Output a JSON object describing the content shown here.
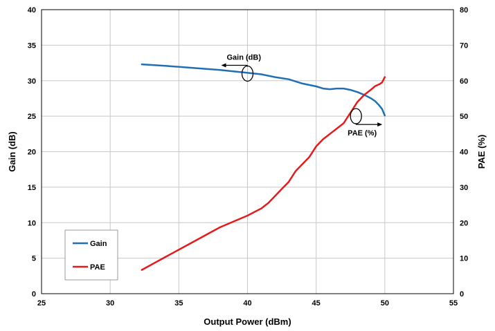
{
  "chart_data": {
    "type": "line",
    "xlabel": "Output Power (dBm)",
    "ylabel": "Gain (dB)",
    "y2label": "PAE (%)",
    "xlim": [
      25,
      55
    ],
    "ylim": [
      0,
      40
    ],
    "y2lim": [
      0,
      80
    ],
    "x_ticks": [
      25,
      30,
      35,
      40,
      45,
      50,
      55
    ],
    "y_ticks": [
      0,
      5,
      10,
      15,
      20,
      25,
      30,
      35,
      40
    ],
    "y2_ticks": [
      0,
      10,
      20,
      30,
      40,
      50,
      60,
      70,
      80
    ],
    "grid": true,
    "legend_position": "bottom-left",
    "series": [
      {
        "name": "Gain",
        "axis": "left",
        "color": "#1f6fb4",
        "x": [
          32.3,
          34,
          36,
          38,
          40,
          41,
          42,
          43,
          44,
          45,
          45.5,
          46,
          46.5,
          47,
          47.5,
          48,
          48.5,
          49,
          49.3,
          49.6,
          49.8,
          50
        ],
        "y": [
          32.3,
          32.1,
          31.8,
          31.5,
          31.1,
          30.9,
          30.5,
          30.2,
          29.6,
          29.2,
          28.9,
          28.8,
          28.9,
          28.9,
          28.7,
          28.4,
          28.0,
          27.5,
          27.1,
          26.5,
          26.0,
          25.1
        ]
      },
      {
        "name": "PAE",
        "axis": "right",
        "color": "#e41a1c",
        "x": [
          32.3,
          34,
          36,
          38,
          40,
          41,
          41.5,
          42,
          42.5,
          43,
          43.5,
          44,
          44.5,
          45,
          45.5,
          46,
          46.5,
          47,
          47.5,
          48,
          48.5,
          49,
          49.3,
          49.6,
          49.8,
          50
        ],
        "y": [
          6.7,
          10.3,
          14.5,
          18.7,
          22.0,
          24.0,
          25.5,
          27.5,
          29.5,
          31.5,
          34.5,
          36.5,
          38.5,
          41.5,
          43.5,
          45.0,
          46.5,
          48.0,
          51.0,
          54.0,
          56.0,
          57.5,
          58.5,
          59.0,
          59.5,
          61.0
        ]
      }
    ],
    "annotations": [
      {
        "text": "Gain (dB)",
        "x": 40,
        "y": 31,
        "axis": "left",
        "arrow": "left"
      },
      {
        "text": "PAE (%)",
        "x": 47.9,
        "y": 50,
        "axis": "right",
        "arrow": "right"
      }
    ]
  }
}
